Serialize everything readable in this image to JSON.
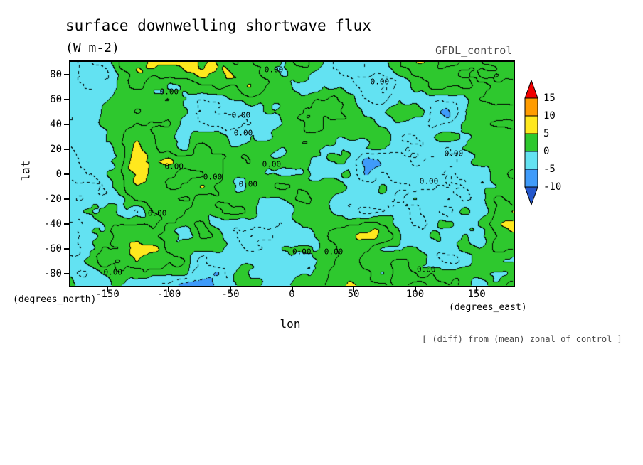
{
  "chart_data": {
    "type": "heatmap",
    "title": "surface downwelling shortwave flux",
    "units_label": "(W m-2)",
    "dataset_label": "GFDL_control",
    "xlabel": "lon",
    "ylabel": "lat",
    "x_axis_note": "(degrees_east)",
    "y_axis_note": "(degrees_north)",
    "footnote": "[ (diff) from (mean) zonal of control ]",
    "xlim": [
      -180,
      180
    ],
    "ylim": [
      -90,
      90
    ],
    "x_ticks": [
      -150,
      -100,
      -50,
      0,
      50,
      100,
      150
    ],
    "y_ticks": [
      80,
      60,
      40,
      20,
      0,
      -20,
      -40,
      -60,
      -80
    ],
    "grid": false,
    "legend_position": "right-colorbar",
    "colorbar": {
      "levels": [
        -10,
        -5,
        0,
        5,
        10,
        15
      ],
      "band_colors": [
        "#2457cc",
        "#3f9bfa",
        "#63e2f2",
        "#2ec82e",
        "#ffe81e",
        "#ff9c00",
        "#f00000"
      ],
      "band_meaning": [
        "below -10",
        "-10 to -5",
        "-5 to 0",
        "0 to 5",
        "5 to 10",
        "10 to 15",
        "above 15"
      ],
      "out_of_range_arrows": true
    },
    "contour_label": "0.00",
    "contour_interval": 2.5,
    "filled_interval": 5,
    "value_range_estimate": [
      -12,
      15
    ],
    "field": {
      "seed": 20,
      "scale": 1.35,
      "octaves": [
        {
          "fx": 6,
          "fy": 4,
          "amp": 3.2
        },
        {
          "fx": 13,
          "fy": 9,
          "amp": 2.1
        },
        {
          "fx": 27,
          "fy": 18,
          "amp": 1.2
        },
        {
          "fx": 54,
          "fy": 36,
          "amp": 0.6
        }
      ],
      "mod": {
        "fx": 4,
        "fy": 3,
        "base": 0.6,
        "amp": 0.8
      }
    },
    "zero_contour_labels": [
      {
        "x": 0.459,
        "y": 0.035
      },
      {
        "x": 0.698,
        "y": 0.089
      },
      {
        "x": 0.223,
        "y": 0.133
      },
      {
        "x": 0.385,
        "y": 0.238
      },
      {
        "x": 0.39,
        "y": 0.317
      },
      {
        "x": 0.234,
        "y": 0.467
      },
      {
        "x": 0.454,
        "y": 0.457
      },
      {
        "x": 0.865,
        "y": 0.41
      },
      {
        "x": 0.809,
        "y": 0.533
      },
      {
        "x": 0.321,
        "y": 0.514
      },
      {
        "x": 0.401,
        "y": 0.546
      },
      {
        "x": 0.196,
        "y": 0.676
      },
      {
        "x": 0.522,
        "y": 0.848
      },
      {
        "x": 0.594,
        "y": 0.848
      },
      {
        "x": 0.096,
        "y": 0.94
      },
      {
        "x": 0.803,
        "y": 0.927
      }
    ]
  }
}
